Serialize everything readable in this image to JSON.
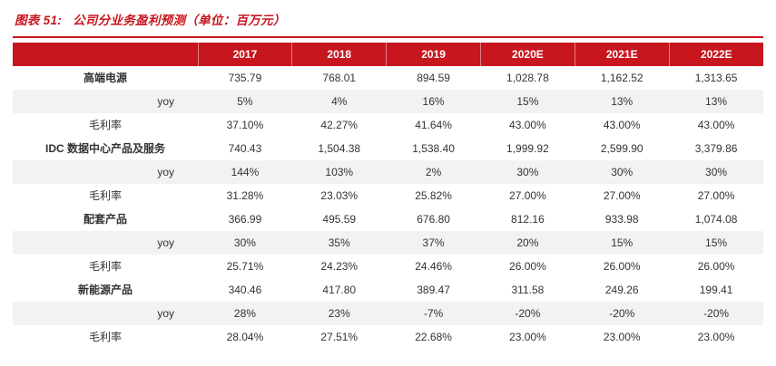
{
  "title": {
    "figure_label": "图表 51:",
    "text": "公司分业务盈利预测（单位：百万元）"
  },
  "colors": {
    "accent_red": "#C8161E",
    "alt_row_bg": "#F2F2F2",
    "text": "#333333",
    "header_text": "#FFFFFF"
  },
  "table": {
    "columns": [
      "",
      "2017",
      "2018",
      "2019",
      "2020E",
      "2021E",
      "2022E"
    ],
    "rows": [
      {
        "label": "高端电源",
        "type": "category",
        "values": [
          "735.79",
          "768.01",
          "894.59",
          "1,028.78",
          "1,162.52",
          "1,313.65"
        ]
      },
      {
        "label": "yoy",
        "type": "yoy",
        "values": [
          "5%",
          "4%",
          "16%",
          "15%",
          "13%",
          "13%"
        ]
      },
      {
        "label": "毛利率",
        "type": "margin",
        "values": [
          "37.10%",
          "42.27%",
          "41.64%",
          "43.00%",
          "43.00%",
          "43.00%"
        ]
      },
      {
        "label": "IDC 数据中心产品及服务",
        "type": "category",
        "values": [
          "740.43",
          "1,504.38",
          "1,538.40",
          "1,999.92",
          "2,599.90",
          "3,379.86"
        ]
      },
      {
        "label": "yoy",
        "type": "yoy",
        "values": [
          "144%",
          "103%",
          "2%",
          "30%",
          "30%",
          "30%"
        ]
      },
      {
        "label": "毛利率",
        "type": "margin",
        "values": [
          "31.28%",
          "23.03%",
          "25.82%",
          "27.00%",
          "27.00%",
          "27.00%"
        ]
      },
      {
        "label": "配套产品",
        "type": "category",
        "values": [
          "366.99",
          "495.59",
          "676.80",
          "812.16",
          "933.98",
          "1,074.08"
        ]
      },
      {
        "label": "yoy",
        "type": "yoy",
        "values": [
          "30%",
          "35%",
          "37%",
          "20%",
          "15%",
          "15%"
        ]
      },
      {
        "label": "毛利率",
        "type": "margin",
        "values": [
          "25.71%",
          "24.23%",
          "24.46%",
          "26.00%",
          "26.00%",
          "26.00%"
        ]
      },
      {
        "label": "新能源产品",
        "type": "category",
        "values": [
          "340.46",
          "417.80",
          "389.47",
          "311.58",
          "249.26",
          "199.41"
        ]
      },
      {
        "label": "yoy",
        "type": "yoy",
        "values": [
          "28%",
          "23%",
          "-7%",
          "-20%",
          "-20%",
          "-20%"
        ]
      },
      {
        "label": "毛利率",
        "type": "margin",
        "values": [
          "28.04%",
          "27.51%",
          "22.68%",
          "23.00%",
          "23.00%",
          "23.00%"
        ]
      }
    ]
  }
}
